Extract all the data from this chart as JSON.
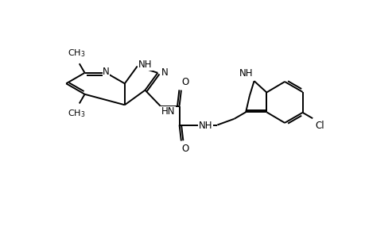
{
  "bg_color": "#ffffff",
  "line_color": "#000000",
  "line_width": 1.4,
  "font_size": 8.5,
  "figsize": [
    4.6,
    3.0
  ],
  "dpi": 100,
  "xlim": [
    0,
    9.2
  ],
  "ylim": [
    0,
    6.0
  ]
}
